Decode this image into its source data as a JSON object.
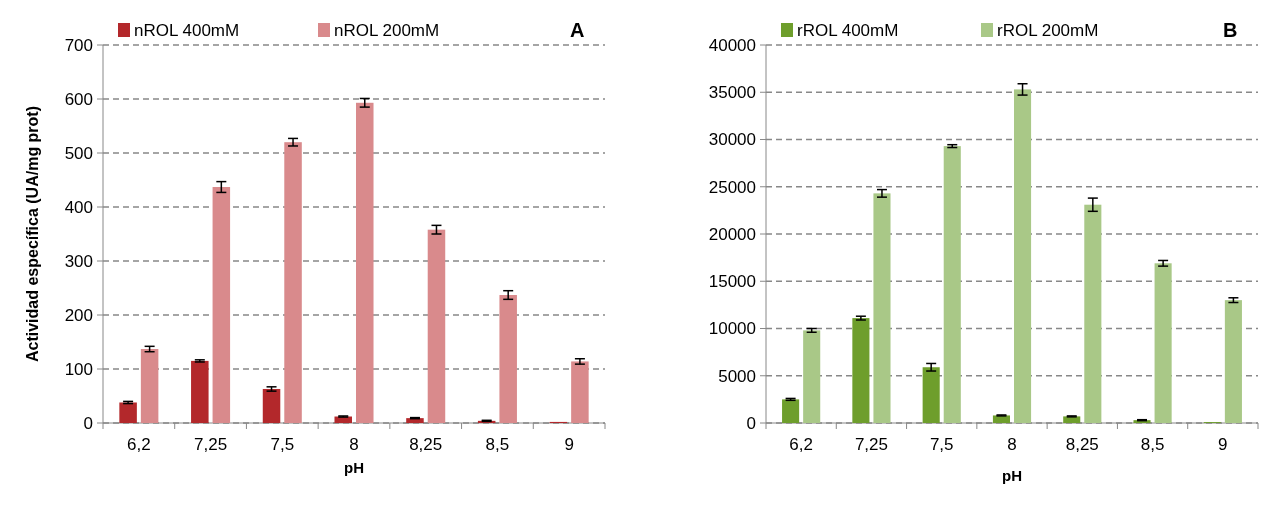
{
  "chart_data": [
    {
      "type": "bar",
      "categories": [
        "6,2",
        "7,25",
        "7,5",
        "8",
        "8,25",
        "8,5",
        "9"
      ],
      "xlabel": "pH",
      "ylabel": "Actividad específica (UA/mg prot)",
      "ylim": [
        0,
        700
      ],
      "yticks": [
        0,
        100,
        200,
        300,
        400,
        500,
        600,
        700
      ],
      "grid": "y",
      "legend": "top",
      "annotations": [
        "A"
      ],
      "series": [
        {
          "name": "nROL 400mM",
          "color": "#b3282b",
          "values": [
            38,
            115,
            63,
            12,
            9,
            4,
            2
          ],
          "errors": [
            2,
            2,
            4,
            1,
            1,
            1,
            null
          ]
        },
        {
          "name": "nROL 200mM",
          "color": "#d98a8c",
          "values": [
            137,
            437,
            520,
            593,
            358,
            237,
            114
          ],
          "errors": [
            5,
            10,
            7,
            8,
            8,
            8,
            5
          ]
        }
      ]
    },
    {
      "type": "bar",
      "categories": [
        "6,2",
        "7,25",
        "7,5",
        "8",
        "8,25",
        "8,5",
        "9"
      ],
      "xlabel": "pH",
      "ylim": [
        0,
        40000
      ],
      "yticks": [
        0,
        5000,
        10000,
        15000,
        20000,
        25000,
        30000,
        35000,
        40000
      ],
      "grid": "y",
      "legend": "top",
      "annotations": [
        "B"
      ],
      "series": [
        {
          "name": "rROL 400mM",
          "color": "#6e9e2c",
          "values": [
            2500,
            11100,
            5900,
            800,
            700,
            300,
            100
          ],
          "errors": [
            100,
            200,
            400,
            50,
            50,
            50,
            null
          ]
        },
        {
          "name": "rROL 200mM",
          "color": "#a9c887",
          "values": [
            9800,
            24300,
            29300,
            35300,
            23100,
            16900,
            13000
          ],
          "errors": [
            200,
            400,
            150,
            600,
            700,
            300,
            250
          ]
        }
      ]
    }
  ]
}
